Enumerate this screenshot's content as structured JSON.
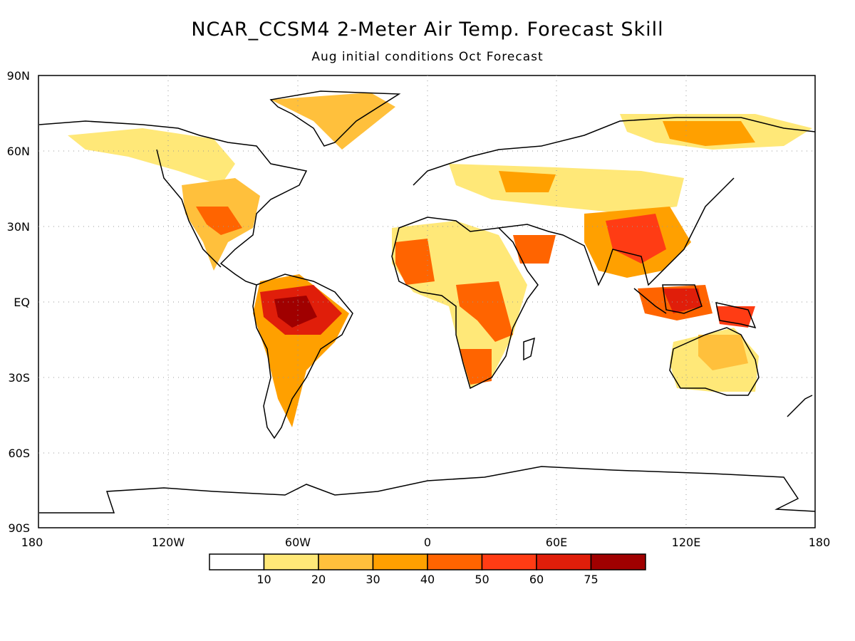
{
  "title": "NCAR_CCSM4 2-Meter Air Temp. Forecast Skill",
  "subtitle": "Aug initial conditions  Oct Forecast",
  "map": {
    "projection": "equirectangular",
    "lat_labels": [
      "90N",
      "60N",
      "30N",
      "EQ",
      "30S",
      "60S",
      "90S"
    ],
    "lon_labels": [
      "180",
      "120W",
      "60W",
      "0",
      "60E",
      "120E",
      "180"
    ],
    "gridlines": "dotted"
  },
  "legend": {
    "bins": [
      {
        "color": "#ffffff"
      },
      {
        "color": "#ffe878"
      },
      {
        "color": "#ffc03c"
      },
      {
        "color": "#ffa000"
      },
      {
        "color": "#ff6400"
      },
      {
        "color": "#ff3c14"
      },
      {
        "color": "#e01e0a"
      },
      {
        "color": "#a00000"
      }
    ],
    "labels": [
      "10",
      "20",
      "30",
      "40",
      "50",
      "60",
      "75"
    ]
  }
}
